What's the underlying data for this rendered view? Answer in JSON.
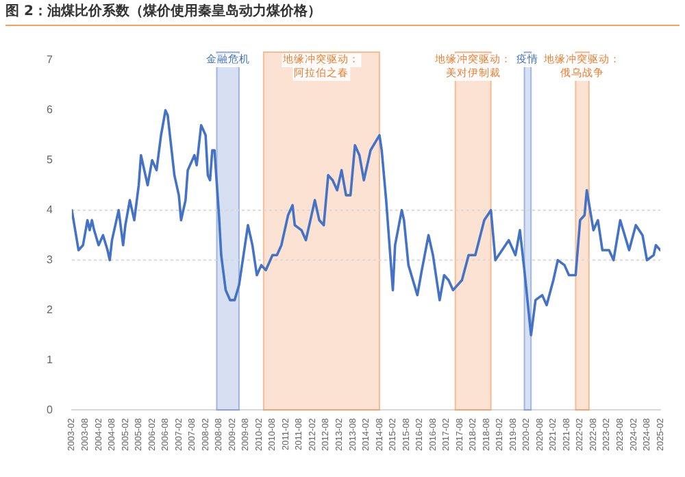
{
  "chart_data": {
    "type": "line",
    "title": "图 2：油煤比价系数（煤价使用秦皇岛动力煤价格）",
    "x": [
      "2003-02",
      "2003-05",
      "2003-07",
      "2003-09",
      "2003-10",
      "2003-11",
      "2003-12",
      "2004-02",
      "2004-04",
      "2004-06",
      "2004-07",
      "2004-08",
      "2004-11",
      "2005-01",
      "2005-02",
      "2005-04",
      "2005-06",
      "2005-08",
      "2005-09",
      "2005-12",
      "2006-02",
      "2006-04",
      "2006-06",
      "2006-08",
      "2006-09",
      "2006-12",
      "2007-02",
      "2007-03",
      "2007-05",
      "2007-06",
      "2007-09",
      "2007-10",
      "2007-12",
      "2008-02",
      "2008-03",
      "2008-04",
      "2008-05",
      "2008-06",
      "2008-08",
      "2008-09",
      "2008-11",
      "2009-01",
      "2009-03",
      "2009-05",
      "2009-07",
      "2009-09",
      "2009-11",
      "2010-01",
      "2010-03",
      "2010-05",
      "2010-08",
      "2010-10",
      "2010-12",
      "2011-03",
      "2011-05",
      "2011-06",
      "2011-09",
      "2011-11",
      "2012-01",
      "2012-03",
      "2012-05",
      "2012-07",
      "2012-09",
      "2012-11",
      "2013-01",
      "2013-03",
      "2013-05",
      "2013-07",
      "2013-09",
      "2013-11",
      "2014-01",
      "2014-04",
      "2014-08",
      "2014-09",
      "2014-11",
      "2015-02",
      "2015-03",
      "2015-06",
      "2015-07",
      "2015-09",
      "2016-01",
      "2016-03",
      "2016-06",
      "2016-08",
      "2016-11",
      "2017-01",
      "2017-03",
      "2017-05",
      "2017-09",
      "2017-12",
      "2018-03",
      "2018-07",
      "2018-10",
      "2018-12",
      "2019-03",
      "2019-06",
      "2019-09",
      "2019-11",
      "2020-01",
      "2020-04",
      "2020-06",
      "2020-09",
      "2020-11",
      "2021-02",
      "2021-04",
      "2021-07",
      "2021-09",
      "2021-12",
      "2022-02",
      "2022-04",
      "2022-05",
      "2022-08",
      "2022-10",
      "2022-12",
      "2023-03",
      "2023-05",
      "2023-08",
      "2023-12",
      "2024-03",
      "2024-06",
      "2024-08",
      "2024-11",
      "2024-12",
      "2025-02"
    ],
    "series": [
      {
        "color": "#4472c4",
        "values": [
          4.0,
          3.2,
          3.3,
          3.8,
          3.6,
          3.8,
          3.6,
          3.3,
          3.5,
          3.2,
          3.0,
          3.4,
          4.0,
          3.3,
          3.7,
          4.2,
          3.8,
          4.5,
          5.1,
          4.5,
          5.0,
          4.8,
          5.5,
          6.0,
          5.9,
          4.7,
          4.3,
          3.8,
          4.2,
          4.8,
          5.1,
          4.9,
          5.7,
          5.5,
          4.7,
          4.6,
          5.2,
          5.2,
          3.9,
          3.1,
          2.4,
          2.2,
          2.2,
          2.5,
          3.1,
          3.7,
          3.3,
          2.7,
          2.9,
          2.8,
          3.1,
          3.1,
          3.3,
          3.9,
          4.1,
          3.7,
          3.6,
          3.4,
          3.8,
          4.2,
          3.8,
          3.7,
          4.7,
          4.6,
          4.4,
          4.8,
          4.3,
          4.3,
          5.3,
          5.1,
          4.6,
          5.2,
          5.5,
          5.2,
          4.2,
          2.4,
          3.3,
          4.0,
          3.8,
          2.9,
          2.3,
          2.8,
          3.5,
          3.1,
          2.2,
          2.7,
          2.6,
          2.4,
          2.6,
          3.1,
          3.1,
          3.8,
          4.0,
          3.0,
          3.2,
          3.4,
          3.1,
          3.6,
          2.8,
          1.5,
          2.2,
          2.3,
          2.1,
          2.6,
          3.0,
          2.9,
          2.7,
          2.7,
          3.8,
          3.9,
          4.4,
          3.6,
          3.8,
          3.2,
          3.2,
          3.0,
          3.8,
          3.2,
          3.7,
          3.5,
          3.0,
          3.1,
          3.3,
          3.2
        ]
      }
    ],
    "xlim": [
      "2003-02",
      "2025-02"
    ],
    "xticks": [
      "2003-02",
      "2003-08",
      "2004-02",
      "2004-08",
      "2005-02",
      "2005-08",
      "2006-02",
      "2006-08",
      "2007-02",
      "2007-08",
      "2008-02",
      "2008-08",
      "2009-02",
      "2009-08",
      "2010-02",
      "2010-08",
      "2011-02",
      "2011-08",
      "2012-02",
      "2012-08",
      "2013-02",
      "2013-08",
      "2014-02",
      "2014-08",
      "2015-02",
      "2015-08",
      "2016-02",
      "2016-08",
      "2017-02",
      "2017-08",
      "2018-02",
      "2018-08",
      "2019-02",
      "2019-08",
      "2020-02",
      "2020-08",
      "2021-02",
      "2021-08",
      "2022-02",
      "2022-08",
      "2023-02",
      "2023-08",
      "2024-02",
      "2024-08",
      "2025-02"
    ],
    "ylim": [
      0,
      7
    ],
    "yticks": [
      0,
      1,
      2,
      3,
      4,
      5,
      6,
      7
    ],
    "grid": false,
    "legend": false,
    "marker": "none",
    "line_style": "solid",
    "ref_lines": [
      {
        "axis": "y",
        "value": 3,
        "color": "#d9d9d9",
        "line_style": "dotted"
      },
      {
        "axis": "y",
        "value": 4,
        "color": "#d9d9d9",
        "line_style": "dotted"
      }
    ],
    "bands": [
      {
        "axis": "x",
        "from": "2008-07",
        "to": "2009-05",
        "label": "金融危机",
        "color": "#4472c4"
      },
      {
        "axis": "x",
        "from": "2010-04",
        "to": "2014-08",
        "label": "地缘冲突驱动：阿拉伯之春",
        "color": "#ed7d31"
      },
      {
        "axis": "x",
        "from": "2017-06",
        "to": "2018-10",
        "label": "地缘冲突驱动：美对伊制裁",
        "color": "#ed7d31"
      },
      {
        "axis": "x",
        "from": "2020-01",
        "to": "2020-04",
        "label": "疫情",
        "color": "#4472c4"
      },
      {
        "axis": "x",
        "from": "2021-12",
        "to": "2022-06",
        "label": "地缘冲突驱动：俄乌战争",
        "color": "#ed7d31"
      }
    ]
  }
}
